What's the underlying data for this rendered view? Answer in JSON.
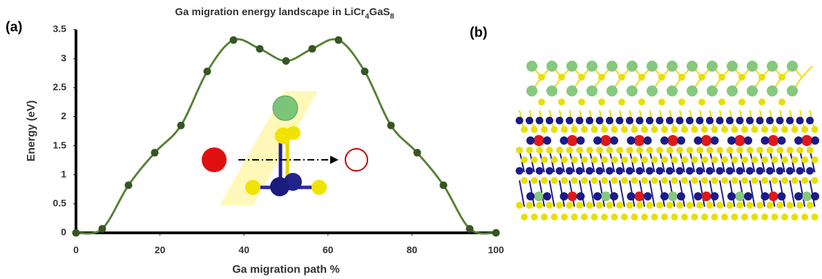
{
  "chart_data": {
    "type": "line",
    "title": "Ga migration energy landscape in LiCr4GaS8",
    "panel_labels": [
      "(a)",
      "(b)"
    ],
    "x_label": "Ga migration path %",
    "y_label": "Energy (eV)",
    "x": [
      0,
      6.25,
      12.5,
      18.75,
      25,
      31.25,
      37.5,
      43.75,
      50,
      56.25,
      62.5,
      68.75,
      75,
      81.25,
      87.5,
      93.75,
      100
    ],
    "series": [
      {
        "color": "#548235",
        "marker_color": "#375623",
        "values": [
          0,
          0.07,
          0.82,
          1.38,
          1.85,
          2.78,
          3.32,
          3.17,
          2.96,
          3.17,
          3.32,
          2.78,
          1.85,
          1.38,
          0.82,
          0.07,
          0
        ]
      }
    ],
    "xlim": [
      0,
      100
    ],
    "xticks": [
      0,
      20,
      40,
      60,
      80,
      100
    ],
    "ylim": [
      0,
      3.5
    ],
    "yticks": [
      0,
      0.5,
      1,
      1.5,
      2,
      2.5,
      3,
      3.5
    ],
    "grid": false
  }
}
